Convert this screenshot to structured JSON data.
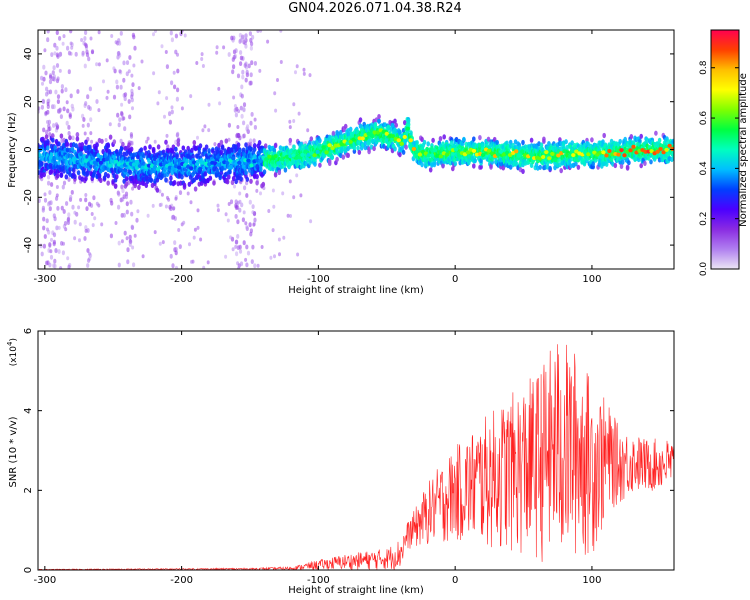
{
  "title": "GN04.2026.071.04.38.R24",
  "chart_data": [
    {
      "type": "heatmap",
      "name": "spectrogram",
      "xlabel": "Height of straight line (km)",
      "ylabel": "Frequency (Hz)",
      "xlim": [
        -305,
        160
      ],
      "ylim": [
        -50,
        50
      ],
      "xticks": [
        -300,
        -200,
        -100,
        0,
        100
      ],
      "yticks": [
        -40,
        -20,
        0,
        20,
        40
      ],
      "ridge_frequency_hz": [
        [
          -300,
          -3
        ],
        [
          -260,
          -5
        ],
        [
          -230,
          -7
        ],
        [
          -200,
          -7
        ],
        [
          -180,
          -6
        ],
        [
          -150,
          -5
        ],
        [
          -130,
          -4
        ],
        [
          -110,
          -2
        ],
        [
          -90,
          1
        ],
        [
          -70,
          5
        ],
        [
          -55,
          7
        ],
        [
          -45,
          5
        ],
        [
          -38,
          3
        ],
        [
          -35,
          9
        ],
        [
          -30,
          -1
        ],
        [
          -20,
          -2
        ],
        [
          0,
          -1
        ],
        [
          20,
          -1
        ],
        [
          40,
          -2
        ],
        [
          60,
          -3
        ],
        [
          80,
          -2
        ],
        [
          100,
          -2
        ],
        [
          120,
          -1
        ],
        [
          140,
          0
        ],
        [
          160,
          0
        ]
      ],
      "colorbar": {
        "label": "Normalized spectral amplitude",
        "range": [
          0,
          0.95
        ],
        "ticks": [
          0.0,
          0.2,
          0.4,
          0.6,
          0.8
        ],
        "colors": [
          "#ece6f5",
          "#b07ff0",
          "#8a2be2",
          "#4b00ff",
          "#0040ff",
          "#00bfff",
          "#00ffbf",
          "#00ff40",
          "#80ff00",
          "#ffff00",
          "#ffbf00",
          "#ff4000",
          "#ff0050"
        ]
      }
    },
    {
      "type": "line",
      "name": "snr",
      "xlabel": "Height of straight line (km)",
      "ylabel": "SNR (10 * v/v)",
      "scale_label": "(x10",
      "scale_exp": "4",
      "scale_close": ")",
      "xlim": [
        -305,
        160
      ],
      "ylim": [
        0,
        6
      ],
      "xticks": [
        -300,
        -200,
        -100,
        0,
        100
      ],
      "yticks": [
        0,
        2,
        4,
        6
      ],
      "color": "#ff2020",
      "envelope": [
        [
          -305,
          0.02
        ],
        [
          -150,
          0.05
        ],
        [
          -120,
          0.08
        ],
        [
          -100,
          0.25
        ],
        [
          -80,
          0.4
        ],
        [
          -60,
          0.5
        ],
        [
          -50,
          0.55
        ],
        [
          -40,
          0.8
        ],
        [
          -35,
          1.2
        ],
        [
          -30,
          1.5
        ],
        [
          -20,
          2.2
        ],
        [
          -10,
          2.7
        ],
        [
          0,
          3.1
        ],
        [
          20,
          3.8
        ],
        [
          40,
          4.4
        ],
        [
          60,
          5.0
        ],
        [
          75,
          5.9
        ],
        [
          90,
          5.5
        ],
        [
          100,
          4.8
        ],
        [
          110,
          4.3
        ],
        [
          120,
          3.6
        ],
        [
          140,
          3.3
        ],
        [
          160,
          3.3
        ]
      ],
      "floor": [
        [
          -305,
          0
        ],
        [
          -40,
          0
        ],
        [
          -35,
          0.5
        ],
        [
          -20,
          0.6
        ],
        [
          0,
          0.7
        ],
        [
          40,
          0.4
        ],
        [
          70,
          0.1
        ],
        [
          100,
          0.3
        ],
        [
          115,
          1.5
        ],
        [
          130,
          1.9
        ],
        [
          160,
          2.0
        ]
      ]
    }
  ]
}
